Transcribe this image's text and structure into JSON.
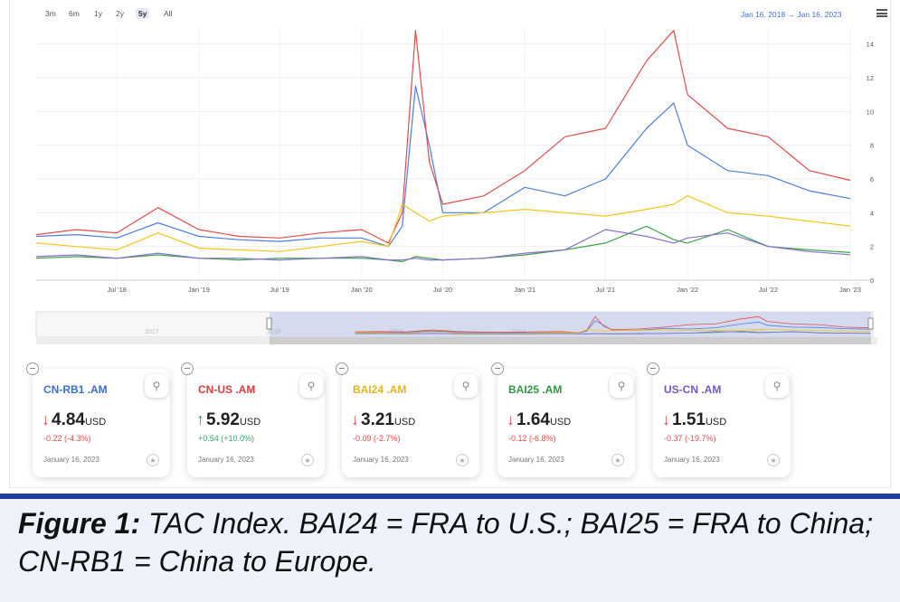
{
  "toolbar": {
    "ranges": [
      "3m",
      "6m",
      "1y",
      "2y",
      "5y",
      "All"
    ],
    "selected": "5y",
    "date_range": "Jan 16, 2018  →  Jan 16, 2023",
    "menu_icon": "hamburger-menu-icon"
  },
  "chart_data": {
    "type": "line",
    "x_ticks": [
      "Jul '18",
      "Jan '19",
      "Jul '19",
      "Jan '20",
      "Jul '20",
      "Jan '21",
      "Jul '21",
      "Jan '22",
      "Jul '22",
      "Jan '23"
    ],
    "y_ticks": [
      0,
      2,
      4,
      6,
      8,
      10,
      12,
      14
    ],
    "ylim": [
      0,
      15
    ],
    "xlim": [
      "Jan 16, 2018",
      "Jan 16, 2023"
    ],
    "grid": true,
    "navigator_labels": [
      "2017",
      "2018",
      "2019",
      "2020",
      "2021",
      "2022"
    ],
    "x_dates": [
      "2018-01",
      "2018-04",
      "2018-07",
      "2018-10",
      "2019-01",
      "2019-04",
      "2019-07",
      "2019-10",
      "2020-01",
      "2020-03",
      "2020-04",
      "2020-05",
      "2020-06",
      "2020-07",
      "2020-10",
      "2021-01",
      "2021-04",
      "2021-07",
      "2021-10",
      "2021-12",
      "2022-01",
      "2022-04",
      "2022-07",
      "2022-10",
      "2023-01"
    ],
    "series": [
      {
        "name": "CN-RB1 .AM",
        "color": "#4a7fe8",
        "values": [
          2.6,
          2.7,
          2.5,
          3.4,
          2.6,
          2.4,
          2.3,
          2.5,
          2.5,
          2.0,
          3.2,
          11.5,
          8.0,
          4.0,
          4.0,
          5.5,
          5.0,
          6.0,
          9.0,
          10.5,
          8.0,
          6.5,
          6.2,
          5.3,
          4.84
        ]
      },
      {
        "name": "CN-US .AM",
        "color": "#e84a4a",
        "values": [
          2.7,
          3.0,
          2.8,
          4.3,
          3.0,
          2.6,
          2.5,
          2.8,
          3.0,
          2.2,
          4.0,
          14.8,
          7.0,
          4.5,
          5.0,
          6.5,
          8.5,
          9.0,
          13.0,
          14.8,
          11.0,
          9.0,
          8.5,
          6.5,
          5.92
        ]
      },
      {
        "name": "BAI24 .AM",
        "color": "#f5c518",
        "values": [
          2.2,
          2.0,
          1.8,
          2.8,
          1.9,
          1.8,
          1.7,
          2.0,
          2.3,
          2.0,
          4.5,
          4.0,
          3.5,
          3.8,
          4.0,
          4.2,
          4.0,
          3.8,
          4.2,
          4.5,
          5.0,
          4.0,
          3.8,
          3.5,
          3.21
        ]
      },
      {
        "name": "BAI25 .AM",
        "color": "#3aa84a",
        "values": [
          1.3,
          1.4,
          1.3,
          1.5,
          1.3,
          1.2,
          1.3,
          1.3,
          1.3,
          1.2,
          1.1,
          1.4,
          1.3,
          1.2,
          1.3,
          1.5,
          1.8,
          2.2,
          3.2,
          2.4,
          2.2,
          3.0,
          2.0,
          1.8,
          1.64
        ]
      },
      {
        "name": "US-CN .AM",
        "color": "#8a6fd1",
        "values": [
          1.4,
          1.5,
          1.3,
          1.6,
          1.3,
          1.3,
          1.2,
          1.3,
          1.4,
          1.2,
          1.2,
          1.3,
          1.2,
          1.2,
          1.3,
          1.6,
          1.8,
          3.0,
          2.6,
          2.2,
          2.5,
          2.8,
          2.0,
          1.7,
          1.51
        ]
      }
    ]
  },
  "cards": [
    {
      "name": "CN-RB1 .AM",
      "color": "#3b6fd6",
      "value": "4.84",
      "unit": "USD",
      "change": "-0.22 (-4.3%)",
      "direction": "down",
      "date": "January 16, 2023"
    },
    {
      "name": "CN-US .AM",
      "color": "#e03a3a",
      "value": "5.92",
      "unit": "USD",
      "change": "+0.54 (+10.0%)",
      "direction": "up",
      "date": "January 16, 2023"
    },
    {
      "name": "BAI24 .AM",
      "color": "#e8b41a",
      "value": "3.21",
      "unit": "USD",
      "change": "-0.09 (-2.7%)",
      "direction": "down",
      "date": "January 16, 2023"
    },
    {
      "name": "BAI25 .AM",
      "color": "#2f9a3f",
      "value": "1.64",
      "unit": "USD",
      "change": "-0.12 (-6.8%)",
      "direction": "down",
      "date": "January 16, 2023"
    },
    {
      "name": "US-CN .AM",
      "color": "#6a5ad1",
      "value": "1.51",
      "unit": "USD",
      "change": "-0.37 (-19.7%)",
      "direction": "down",
      "date": "January 16, 2023"
    }
  ],
  "colors": {
    "up": "#2aa86a",
    "down": "#e84a4a",
    "caption_border": "#20409a"
  },
  "caption": {
    "bold": "Figure 1:",
    "text": " TAC Index. BAI24 = FRA to U.S.; BAI25 = FRA to China; CN-RB1 = China to Europe."
  }
}
